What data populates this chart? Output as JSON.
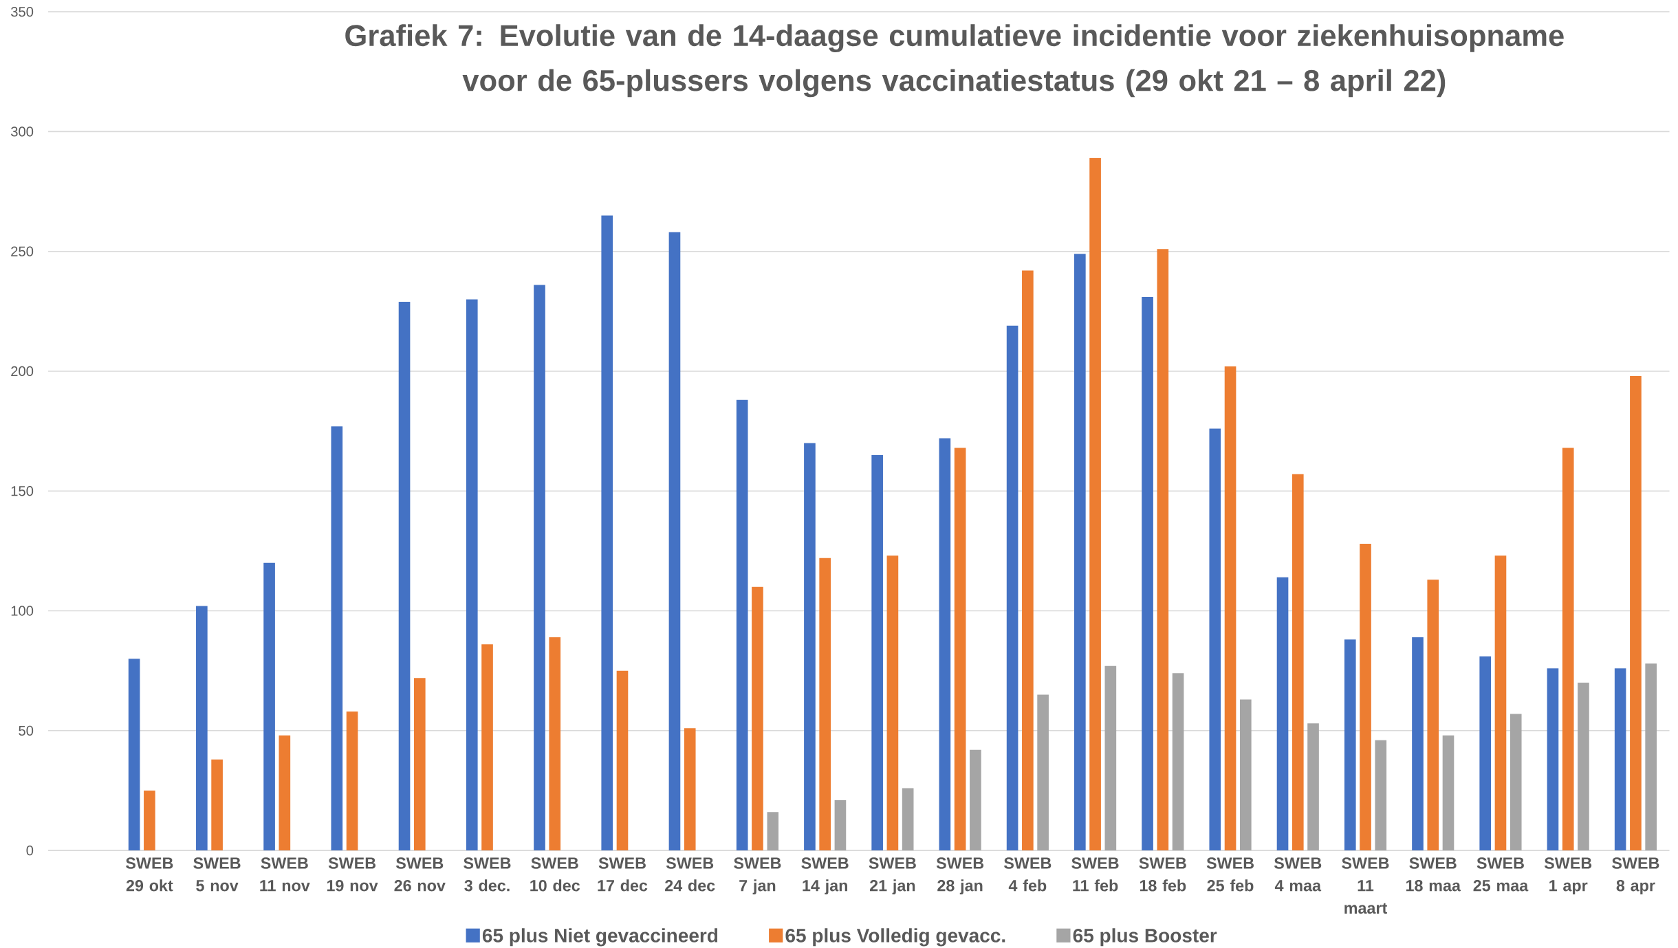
{
  "chart_data": {
    "type": "bar",
    "title": "Grafiek 7: Evolutie van de 14-daagse cumulatieve incidentie voor ziekenhuisopname voor de 65-plussers volgens vaccinatiestatus (29 okt 21 – 8 april 22)",
    "categories": [
      "SWEB 29 okt",
      "SWEB 5 nov",
      "SWEB 11 nov",
      "SWEB 19 nov",
      "SWEB 26 nov",
      "SWEB 3 dec.",
      "SWEB 10 dec",
      "SWEB 17 dec",
      "SWEB 24 dec",
      "SWEB 7 jan",
      "SWEB 14 jan",
      "SWEB 21 jan",
      "SWEB 28 jan",
      "SWEB 4 feb",
      "SWEB 11 feb",
      "SWEB 18 feb",
      "SWEB 25 feb",
      "SWEB 4 maa",
      "SWEB 11 maart",
      "SWEB 18 maa",
      "SWEB 25 maa",
      "SWEB 1 apr",
      "SWEB 8 apr"
    ],
    "series": [
      {
        "name": "65 plus Niet gevaccineerd",
        "color": "#4472c4",
        "values": [
          80,
          102,
          120,
          177,
          229,
          230,
          236,
          265,
          258,
          188,
          170,
          165,
          172,
          219,
          249,
          231,
          176,
          114,
          88,
          89,
          81,
          76,
          76
        ]
      },
      {
        "name": "65 plus Volledig gevacc.",
        "color": "#ed7d31",
        "values": [
          25,
          38,
          48,
          58,
          72,
          86,
          89,
          75,
          51,
          110,
          122,
          123,
          168,
          242,
          289,
          251,
          202,
          157,
          128,
          113,
          123,
          168,
          198
        ]
      },
      {
        "name": "65 plus Booster",
        "color": "#a5a5a5",
        "values": [
          null,
          null,
          null,
          null,
          null,
          null,
          null,
          null,
          null,
          16,
          21,
          26,
          42,
          65,
          77,
          74,
          63,
          53,
          46,
          48,
          57,
          70,
          78
        ]
      }
    ],
    "ylim": [
      0,
      350
    ],
    "yticks": [
      0,
      50,
      100,
      150,
      200,
      250,
      300,
      350
    ],
    "grid": "y",
    "legend": "bottom"
  }
}
